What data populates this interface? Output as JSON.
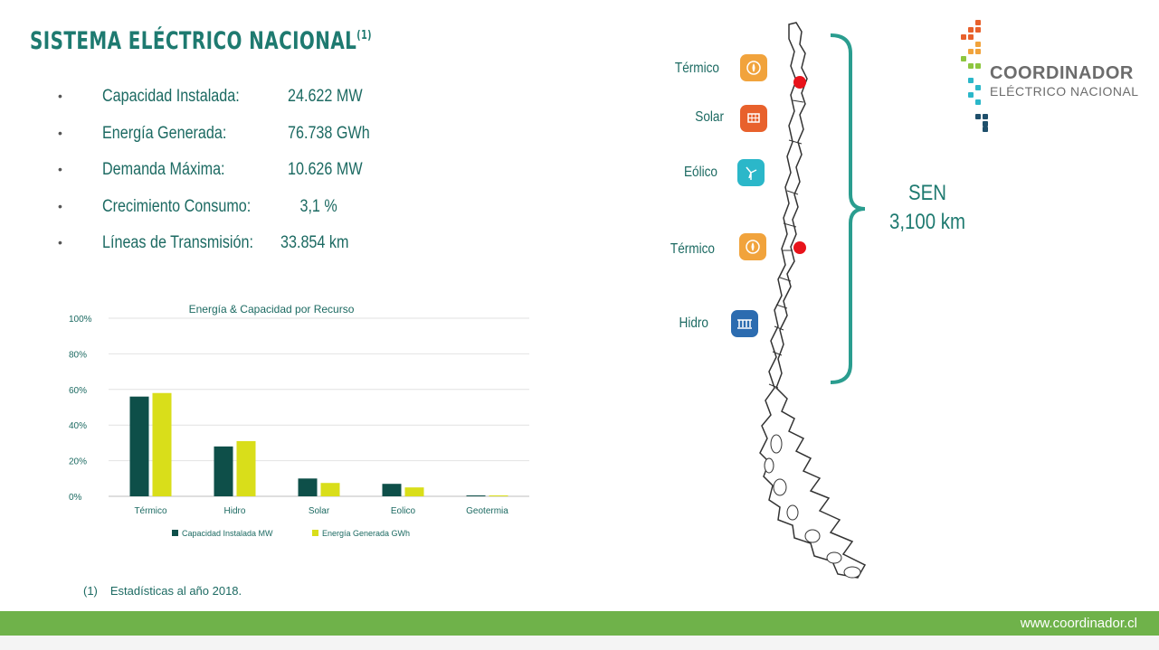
{
  "title": {
    "text": "SISTEMA ELÉCTRICO NACIONAL",
    "sup": "(1)"
  },
  "stats": [
    {
      "label": "Capacidad Instalada:",
      "value": "24.622 MW"
    },
    {
      "label": "Energía Generada:",
      "value": "76.738 GWh"
    },
    {
      "label": "Demanda Máxima:",
      "value": "10.626 MW"
    },
    {
      "label": "Crecimiento Consumo:",
      "value": "   3,1 %"
    },
    {
      "label": "Líneas de Transmisión:",
      "value": "33.854 km"
    }
  ],
  "chart_data": {
    "type": "bar",
    "title": "Energía & Capacidad por Recurso",
    "categories": [
      "Térmico",
      "Hidro",
      "Solar",
      "Eolico",
      "Geotermia"
    ],
    "series": [
      {
        "name": "Capacidad Instalada MW",
        "values": [
          56,
          28,
          10,
          7,
          0.5
        ],
        "color": "#0e4f49"
      },
      {
        "name": "Energía Generada GWh",
        "values": [
          58,
          31,
          7.5,
          5,
          0.5
        ],
        "color": "#d9de1a"
      }
    ],
    "ylim": [
      0,
      100
    ],
    "yticks": [
      "0%",
      "20%",
      "40%",
      "60%",
      "80%",
      "100%"
    ],
    "grid": true,
    "legend": "bottom"
  },
  "map": {
    "resources": [
      {
        "label": "Térmico",
        "icon": "thermal-icon",
        "color": "#f1a33c"
      },
      {
        "label": "Solar",
        "icon": "solar-icon",
        "color": "#e8612c"
      },
      {
        "label": "Eólico",
        "icon": "wind-icon",
        "color": "#2bb7c9"
      },
      {
        "label": "Térmico",
        "icon": "thermal-icon",
        "color": "#f1a33c"
      },
      {
        "label": "Hidro",
        "icon": "hydro-icon",
        "color": "#2c6cb0"
      }
    ],
    "sen_label": "SEN",
    "sen_distance": "3,100 km",
    "marker_color": "#e8131b",
    "bracket_color": "#2a9d8f"
  },
  "logo": {
    "line1": "COORDINADOR",
    "line2": "ELÉCTRICO NACIONAL"
  },
  "footnote": {
    "num": "(1)",
    "text": "Estadísticas al año 2018."
  },
  "footer": {
    "url": "www.coordinador.cl",
    "bar_color": "#6fb24a"
  }
}
